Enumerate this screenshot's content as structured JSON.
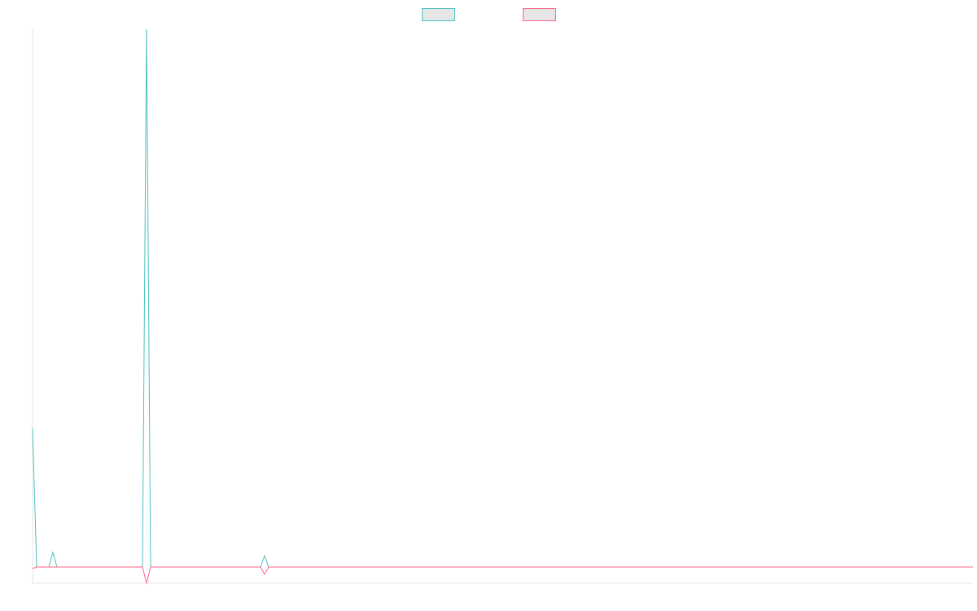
{
  "chart_data": {
    "type": "line",
    "x": [
      0,
      1,
      4,
      5,
      6,
      27,
      28,
      29,
      56,
      57,
      58,
      231
    ],
    "xlim": [
      0,
      231
    ],
    "ylim": [
      -1,
      33
    ],
    "series": [
      {
        "color": "#4bc0c0",
        "values": [
          8.5,
          0,
          0,
          0.9,
          0,
          0,
          33,
          0,
          0,
          0.7,
          0,
          0
        ]
      },
      {
        "color": "#ff6384",
        "values": [
          -0.1,
          0,
          0,
          0,
          0,
          0,
          -1,
          0,
          0,
          -0.45,
          0,
          0
        ]
      }
    ],
    "legend": "top"
  }
}
